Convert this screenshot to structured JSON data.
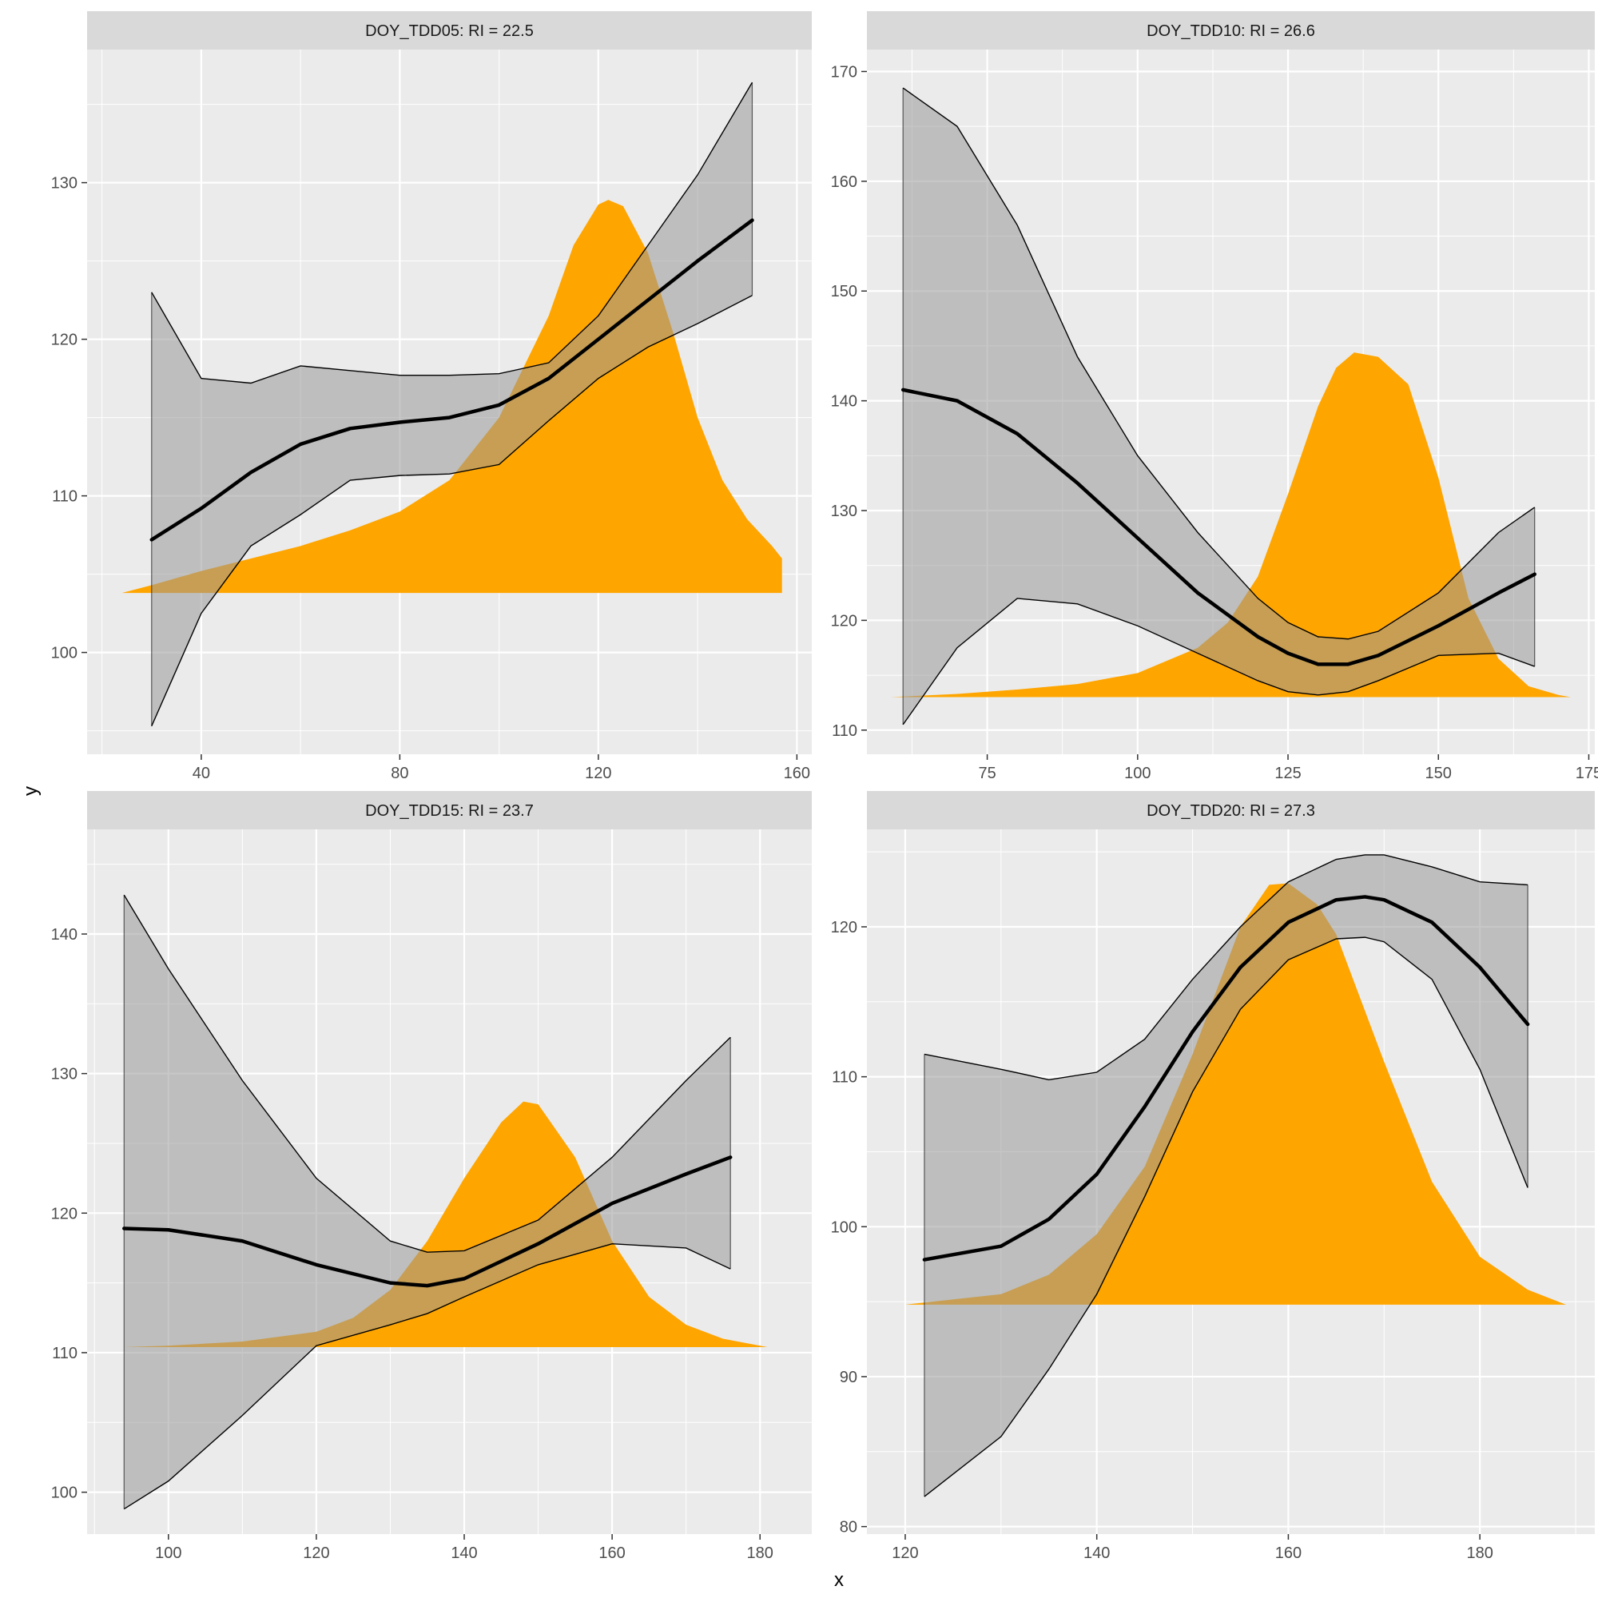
{
  "figure": {
    "xlabel": "x",
    "ylabel": "y"
  },
  "colors": {
    "panel_bg": "#EBEBEB",
    "strip_bg": "#D9D9D9",
    "grid": "#FFFFFF",
    "density": "#FFA500",
    "ribbon": "#999999",
    "line": "#000000"
  },
  "chart_data": [
    {
      "type": "area",
      "title": "DOY_TDD05: RI = 22.5",
      "xlim": [
        17,
        163
      ],
      "ylim": [
        93.5,
        138.5
      ],
      "xticks": [
        40,
        80,
        120,
        160
      ],
      "yticks": [
        100,
        110,
        120,
        130
      ],
      "density": {
        "baseline": 103.8,
        "x": [
          24,
          30,
          40,
          50,
          60,
          70,
          80,
          90,
          100,
          110,
          115,
          120,
          122,
          125,
          130,
          135,
          140,
          145,
          150,
          155,
          157,
          157
        ],
        "y": [
          103.8,
          104.3,
          105.2,
          106.0,
          106.8,
          107.8,
          109.0,
          111.0,
          115.0,
          121.5,
          126.0,
          128.6,
          128.9,
          128.5,
          125.5,
          120.5,
          115.0,
          111.0,
          108.5,
          106.8,
          106.0,
          103.8
        ]
      },
      "smooth": {
        "x": [
          30,
          40,
          50,
          60,
          70,
          80,
          90,
          100,
          110,
          120,
          130,
          140,
          151
        ],
        "fit": [
          107.2,
          109.2,
          111.5,
          113.3,
          114.3,
          114.7,
          115.0,
          115.8,
          117.5,
          120.0,
          122.5,
          125.0,
          127.6
        ],
        "lower": [
          95.3,
          102.5,
          106.8,
          108.8,
          111.0,
          111.3,
          111.4,
          112.0,
          114.8,
          117.5,
          119.5,
          121.0,
          122.8
        ],
        "upper": [
          123.0,
          117.5,
          117.2,
          118.3,
          118.0,
          117.7,
          117.7,
          117.8,
          118.5,
          121.5,
          126.0,
          130.5,
          136.4
        ]
      }
    },
    {
      "type": "area",
      "title": "DOY_TDD10: RI = 26.6",
      "xlim": [
        55,
        176
      ],
      "ylim": [
        107.8,
        172
      ],
      "xticks": [
        75,
        100,
        125,
        150,
        175
      ],
      "yticks": [
        110,
        120,
        130,
        140,
        150,
        160,
        170
      ],
      "density": {
        "baseline": 113.0,
        "x": [
          59,
          70,
          80,
          90,
          100,
          110,
          115,
          120,
          125,
          130,
          133,
          136,
          140,
          145,
          150,
          155,
          160,
          165,
          170,
          172
        ],
        "y": [
          113.0,
          113.3,
          113.7,
          114.2,
          115.2,
          117.5,
          119.8,
          124.0,
          131.5,
          139.5,
          143.0,
          144.4,
          144.0,
          141.5,
          133.0,
          122.0,
          116.5,
          114.0,
          113.2,
          113.0
        ]
      },
      "smooth": {
        "x": [
          61,
          70,
          80,
          90,
          100,
          110,
          120,
          125,
          130,
          135,
          140,
          150,
          160,
          166
        ],
        "fit": [
          141.0,
          140.0,
          137.0,
          132.5,
          127.5,
          122.5,
          118.5,
          117.0,
          116.0,
          116.0,
          116.8,
          119.5,
          122.5,
          124.2
        ],
        "lower": [
          110.5,
          117.5,
          122.0,
          121.5,
          119.5,
          117.0,
          114.5,
          113.5,
          113.2,
          113.5,
          114.5,
          116.8,
          117.0,
          115.8
        ],
        "upper": [
          168.5,
          165.0,
          156.0,
          144.0,
          135.0,
          128.0,
          122.0,
          119.8,
          118.5,
          118.3,
          119.0,
          122.5,
          128.0,
          130.3
        ]
      }
    },
    {
      "type": "area",
      "title": "DOY_TDD15: RI = 23.7",
      "xlim": [
        89,
        187
      ],
      "ylim": [
        97,
        147.5
      ],
      "xticks": [
        100,
        120,
        140,
        160,
        180
      ],
      "yticks": [
        100,
        110,
        120,
        130,
        140
      ],
      "density": {
        "baseline": 110.4,
        "x": [
          94,
          100,
          110,
          120,
          125,
          130,
          135,
          140,
          145,
          148,
          150,
          155,
          160,
          165,
          170,
          175,
          181
        ],
        "y": [
          110.4,
          110.5,
          110.8,
          111.5,
          112.5,
          114.5,
          118.0,
          122.5,
          126.5,
          128.0,
          127.8,
          124.0,
          118.0,
          114.0,
          112.0,
          111.0,
          110.4
        ]
      },
      "smooth": {
        "x": [
          94,
          100,
          110,
          120,
          130,
          135,
          140,
          150,
          160,
          170,
          176
        ],
        "fit": [
          118.9,
          118.8,
          118.0,
          116.3,
          115.0,
          114.8,
          115.3,
          117.8,
          120.7,
          122.8,
          124.0
        ],
        "lower": [
          98.8,
          100.8,
          105.5,
          110.5,
          112.0,
          112.8,
          114.0,
          116.3,
          117.8,
          117.5,
          116.0
        ],
        "upper": [
          142.8,
          137.5,
          129.5,
          122.5,
          118.0,
          117.2,
          117.3,
          119.5,
          124.0,
          129.5,
          132.6
        ]
      }
    },
    {
      "type": "area",
      "title": "DOY_TDD20: RI = 27.3",
      "xlim": [
        116,
        192
      ],
      "ylim": [
        79.5,
        126.5
      ],
      "xticks": [
        120,
        140,
        160,
        180
      ],
      "yticks": [
        80,
        90,
        100,
        110,
        120
      ],
      "density": {
        "baseline": 94.8,
        "x": [
          120,
          130,
          135,
          140,
          145,
          150,
          155,
          158,
          160,
          163,
          165,
          170,
          175,
          180,
          185,
          189
        ],
        "y": [
          94.8,
          95.5,
          96.8,
          99.5,
          104.0,
          111.5,
          120.0,
          122.8,
          122.9,
          121.5,
          119.5,
          111.0,
          103.0,
          98.0,
          95.8,
          94.8
        ]
      },
      "smooth": {
        "x": [
          122,
          130,
          135,
          140,
          145,
          150,
          155,
          160,
          165,
          168,
          170,
          175,
          180,
          185
        ],
        "fit": [
          97.8,
          98.7,
          100.5,
          103.5,
          108.0,
          113.0,
          117.3,
          120.3,
          121.8,
          122.0,
          121.8,
          120.3,
          117.3,
          113.5
        ],
        "lower": [
          82.0,
          86.0,
          90.5,
          95.5,
          102.0,
          109.0,
          114.5,
          117.8,
          119.2,
          119.3,
          119.0,
          116.5,
          110.5,
          102.6
        ],
        "upper": [
          111.5,
          110.5,
          109.8,
          110.3,
          112.5,
          116.5,
          120.0,
          123.0,
          124.5,
          124.8,
          124.8,
          124.0,
          123.0,
          122.8
        ]
      }
    }
  ]
}
